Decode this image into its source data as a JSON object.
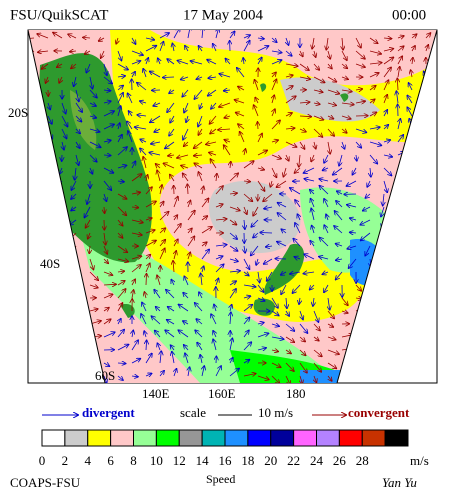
{
  "header": {
    "left": "FSU/QuikSCAT",
    "date": "17 May 2004",
    "time": "00:00"
  },
  "map": {
    "lat_labels": [
      "20S",
      "40S",
      "60S"
    ],
    "lon_labels": [
      "140E",
      "160E",
      "180"
    ]
  },
  "legend": {
    "divergent": "divergent",
    "scale": "scale",
    "scale_value": "10 m/s",
    "convergent": "convergent"
  },
  "colorbar": {
    "colors": [
      "#ffffff",
      "#cccccc",
      "#ffff00",
      "#ffc8c8",
      "#96ff96",
      "#00ff00",
      "#969696",
      "#00b4b4",
      "#1e90ff",
      "#0000ff",
      "#00009b",
      "#ff64ff",
      "#b482ff",
      "#ff0000",
      "#c83200",
      "#000000"
    ],
    "labels": [
      0,
      2,
      4,
      6,
      8,
      10,
      12,
      14,
      16,
      18,
      20,
      22,
      24,
      26,
      28
    ],
    "unit": "m/s"
  },
  "footer": {
    "left": "COAPS-FSU",
    "center": "Speed",
    "right": "Yan Yu"
  }
}
